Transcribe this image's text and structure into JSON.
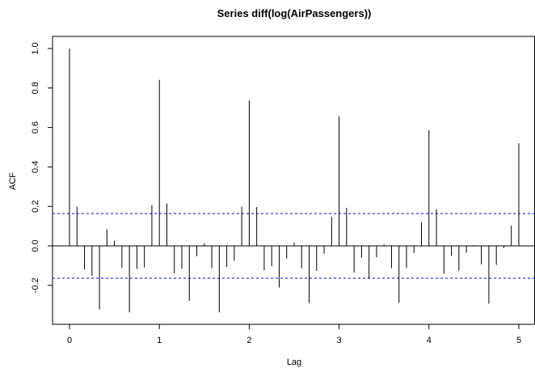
{
  "chart_data": {
    "type": "bar",
    "title": "Series  diff(log(AirPassengers))",
    "xlabel": "Lag",
    "ylabel": "ACF",
    "xlim": [
      -0.15,
      5.15
    ],
    "ylim": [
      -0.4,
      1.05
    ],
    "x_ticks": [
      "0",
      "1",
      "2",
      "3",
      "4",
      "5"
    ],
    "y_ticks": [
      "-0.2",
      "0.0",
      "0.2",
      "0.4",
      "0.6",
      "0.8",
      "1.0"
    ],
    "confidence_band": 0.1641,
    "confidence_color": "#0000ff",
    "spike_color": "#000000",
    "grid": false,
    "lag_step": 0.08333,
    "values": [
      1.0,
      0.199,
      -0.12,
      -0.151,
      -0.322,
      0.084,
      0.026,
      -0.111,
      -0.337,
      -0.117,
      -0.109,
      0.206,
      0.841,
      0.215,
      -0.139,
      -0.116,
      -0.279,
      -0.052,
      0.012,
      -0.114,
      -0.337,
      -0.107,
      -0.075,
      0.199,
      0.736,
      0.197,
      -0.124,
      -0.103,
      -0.211,
      -0.065,
      0.016,
      -0.115,
      -0.289,
      -0.127,
      -0.04,
      0.147,
      0.657,
      0.193,
      -0.135,
      -0.06,
      -0.165,
      -0.058,
      0.007,
      -0.113,
      -0.289,
      -0.111,
      -0.035,
      0.121,
      0.586,
      0.186,
      -0.141,
      -0.05,
      -0.126,
      -0.035,
      0.004,
      -0.094,
      -0.293,
      -0.097,
      -0.011,
      0.103,
      0.52
    ]
  }
}
